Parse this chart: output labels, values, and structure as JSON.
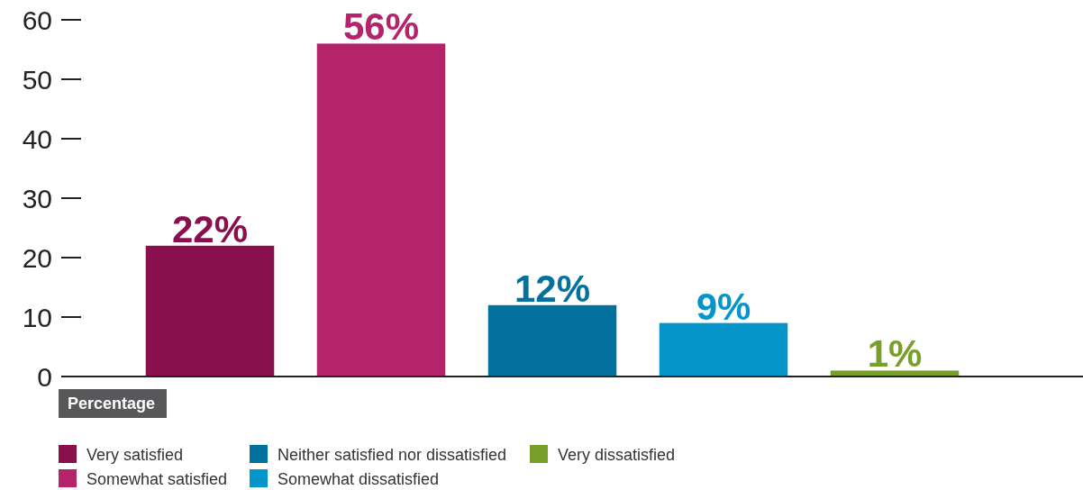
{
  "chart_data": {
    "type": "bar",
    "annotations": [
      "Percentage"
    ],
    "categories": [
      null,
      null,
      null,
      null,
      null
    ],
    "series": [
      {
        "name": "Very satisfied",
        "color": "#8a0f4d",
        "values": [
          22,
          null,
          null,
          null,
          null
        ],
        "value_labels": [
          "22%",
          null,
          null,
          null,
          null
        ]
      },
      {
        "name": "Somewhat satisfied",
        "color": "#b5236b",
        "values": [
          null,
          56,
          null,
          null,
          null
        ],
        "value_labels": [
          null,
          "56%",
          null,
          null,
          null
        ]
      },
      {
        "name": "Neither satisfied nor dissatisfied",
        "color": "#02719d",
        "values": [
          null,
          null,
          12,
          null,
          null
        ],
        "value_labels": [
          null,
          null,
          "12%",
          null,
          null
        ]
      },
      {
        "name": "Somewhat dissatisfied",
        "color": "#0595ca",
        "values": [
          null,
          null,
          null,
          9,
          null
        ],
        "value_labels": [
          null,
          null,
          null,
          "9%",
          null
        ]
      },
      {
        "name": "Very dissatisfied",
        "color": "#7a9e2a",
        "values": [
          null,
          null,
          null,
          null,
          1
        ],
        "value_labels": [
          null,
          null,
          null,
          null,
          "1%"
        ]
      }
    ],
    "ylim": [
      0,
      60
    ],
    "yticks": [
      0,
      10,
      20,
      30,
      40,
      50,
      60
    ],
    "grid": false,
    "legend": "bottom"
  }
}
